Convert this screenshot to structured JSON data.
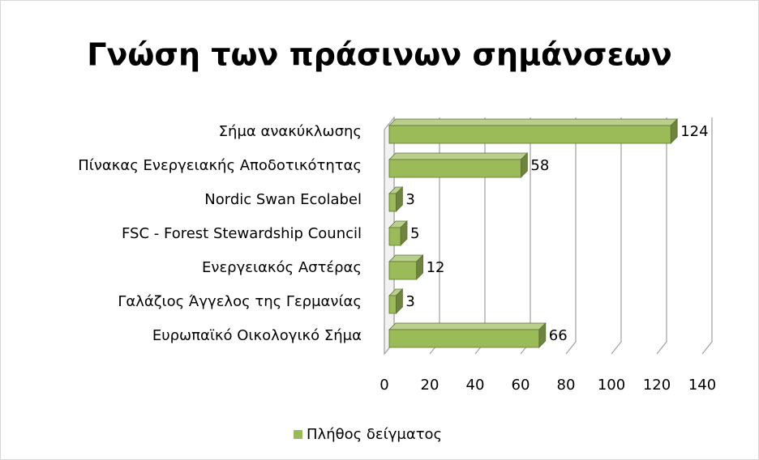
{
  "chart_data": {
    "type": "bar",
    "orientation": "horizontal",
    "title": "Γνώση των πράσινων σημάνσεων",
    "categories": [
      "Σήμα ανακύκλωσης",
      "Πίνακας Ενεργειακής Αποδοτικότητας",
      "Nordic Swan Ecolabel",
      "FSC - Forest Stewardship Council",
      "Ενεργειακός Αστέρας",
      "Γαλάζιος Άγγελος της Γερμανίας",
      "Ευρωπαϊκό Οικολογικό Σήμα"
    ],
    "series": [
      {
        "name": "Πλήθος δείγματος",
        "color": "#9bbb59",
        "values": [
          124,
          58,
          3,
          5,
          12,
          3,
          66
        ]
      }
    ],
    "xlim": [
      0,
      140
    ],
    "xticks": [
      0,
      20,
      40,
      60,
      80,
      100,
      120,
      140
    ],
    "grid": true,
    "legend": "bottom"
  }
}
